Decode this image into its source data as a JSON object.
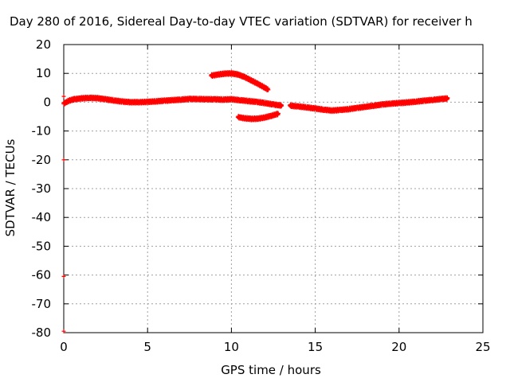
{
  "chart_data": {
    "type": "scatter",
    "title": "Day 280 of 2016, Sidereal Day-to-day VTEC variation (SDTVAR) for receiver h",
    "xlabel": "GPS time / hours",
    "ylabel": "SDTVAR / TECUs",
    "xlim": [
      0,
      25
    ],
    "ylim": [
      -80,
      20
    ],
    "xticks": [
      "0",
      "5",
      "10",
      "15",
      "20",
      "25"
    ],
    "yticks": [
      "20",
      "10",
      "0",
      "-10",
      "-20",
      "-30",
      "-40",
      "-50",
      "-60",
      "-70",
      "-80"
    ],
    "grid": true,
    "color": "#ff0000",
    "series": [
      {
        "x": [
          0.0,
          0.3,
          0.6,
          1.0,
          1.5,
          2.0,
          2.5,
          3.0,
          3.5,
          4.0,
          4.5,
          5.0,
          5.5,
          6.0,
          6.5,
          7.0,
          7.5,
          8.0,
          8.5,
          9.0,
          9.5,
          10.0,
          10.5,
          11.0,
          11.5,
          12.0,
          12.5,
          13.0
        ],
        "y": [
          -0.5,
          0.5,
          1.0,
          1.3,
          1.5,
          1.4,
          1.0,
          0.6,
          0.2,
          0.0,
          0.0,
          0.1,
          0.3,
          0.5,
          0.7,
          0.9,
          1.1,
          1.1,
          1.0,
          1.0,
          0.9,
          1.0,
          0.7,
          0.4,
          0.1,
          -0.3,
          -0.8,
          -1.2
        ]
      },
      {
        "x": [
          13.5,
          14.0,
          14.5,
          15.0,
          15.5,
          16.0,
          16.5,
          17.0,
          17.5,
          18.0,
          18.5,
          19.0,
          19.5,
          20.0,
          20.5,
          21.0,
          21.5,
          22.0,
          22.5,
          22.9
        ],
        "y": [
          -1.2,
          -1.5,
          -1.8,
          -2.2,
          -2.6,
          -2.9,
          -2.7,
          -2.4,
          -2.0,
          -1.6,
          -1.2,
          -0.8,
          -0.5,
          -0.3,
          -0.1,
          0.2,
          0.5,
          0.8,
          1.1,
          1.3
        ]
      },
      {
        "x": [
          8.8,
          9.2,
          9.6,
          10.0,
          10.4,
          10.8,
          11.2,
          11.6,
          12.0,
          12.2
        ],
        "y": [
          9.2,
          9.6,
          9.9,
          10.0,
          9.6,
          8.7,
          7.5,
          6.3,
          5.0,
          4.3
        ]
      },
      {
        "x": [
          10.4,
          10.8,
          11.2,
          11.6,
          12.0,
          12.4,
          12.8
        ],
        "y": [
          -5.2,
          -5.6,
          -5.8,
          -5.7,
          -5.3,
          -4.7,
          -4.0
        ]
      },
      {
        "x": [
          0.0,
          0.0,
          0.0,
          0.0
        ],
        "y": [
          2.0,
          -20.0,
          -60.5,
          -79.5
        ]
      }
    ]
  }
}
